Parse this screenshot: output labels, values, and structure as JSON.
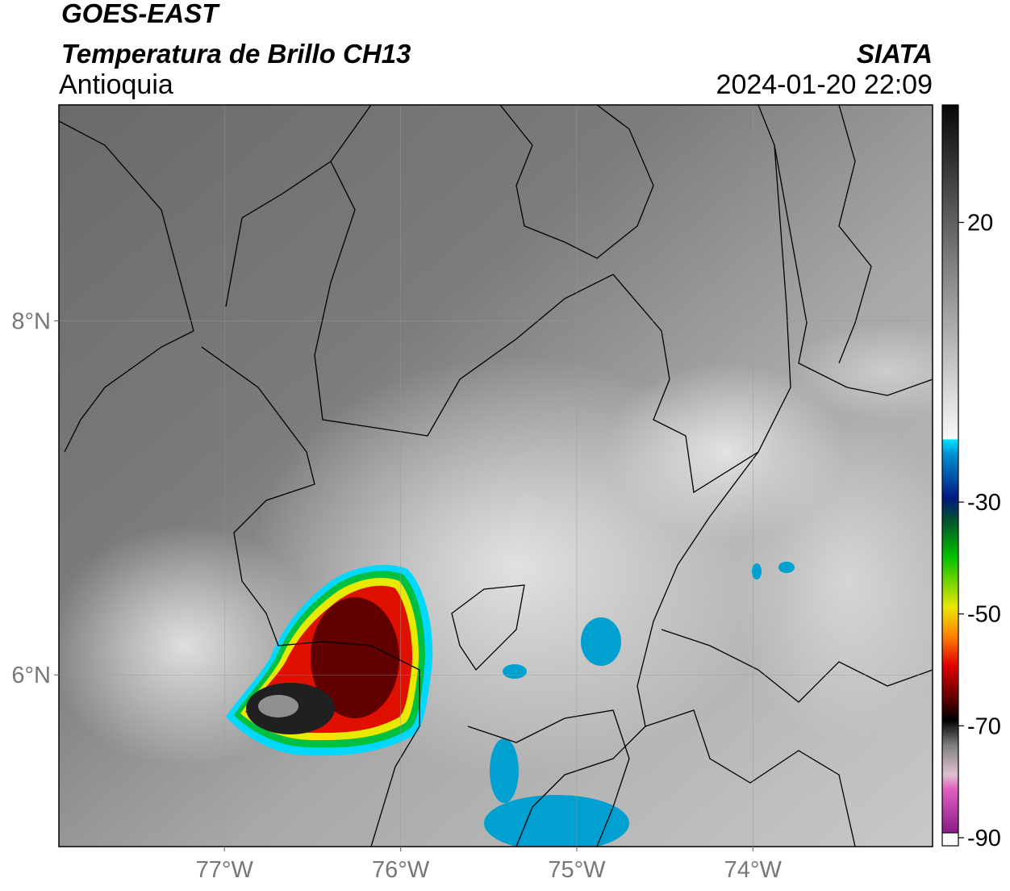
{
  "header": {
    "title": "GOES-EAST",
    "subtitle": "Temperatura de Brillo CH13",
    "region": "Antioquia",
    "source": "SIATA",
    "datetime": "2024-01-20 22:09"
  },
  "map": {
    "xlim": [
      -77.94,
      -72.98
    ],
    "ylim": [
      5.03,
      9.22
    ],
    "xticks": [
      {
        "value": -77,
        "label": "77°W"
      },
      {
        "value": -76,
        "label": "76°W"
      },
      {
        "value": -75,
        "label": "75°W"
      },
      {
        "value": -74,
        "label": "74°W"
      }
    ],
    "yticks": [
      {
        "value": 8,
        "label": "8°N"
      },
      {
        "value": 6,
        "label": "6°N"
      }
    ]
  },
  "colorbar": {
    "range": [
      -90,
      41
    ],
    "ticks": [
      20,
      -30,
      -50,
      -70,
      -90
    ]
  }
}
